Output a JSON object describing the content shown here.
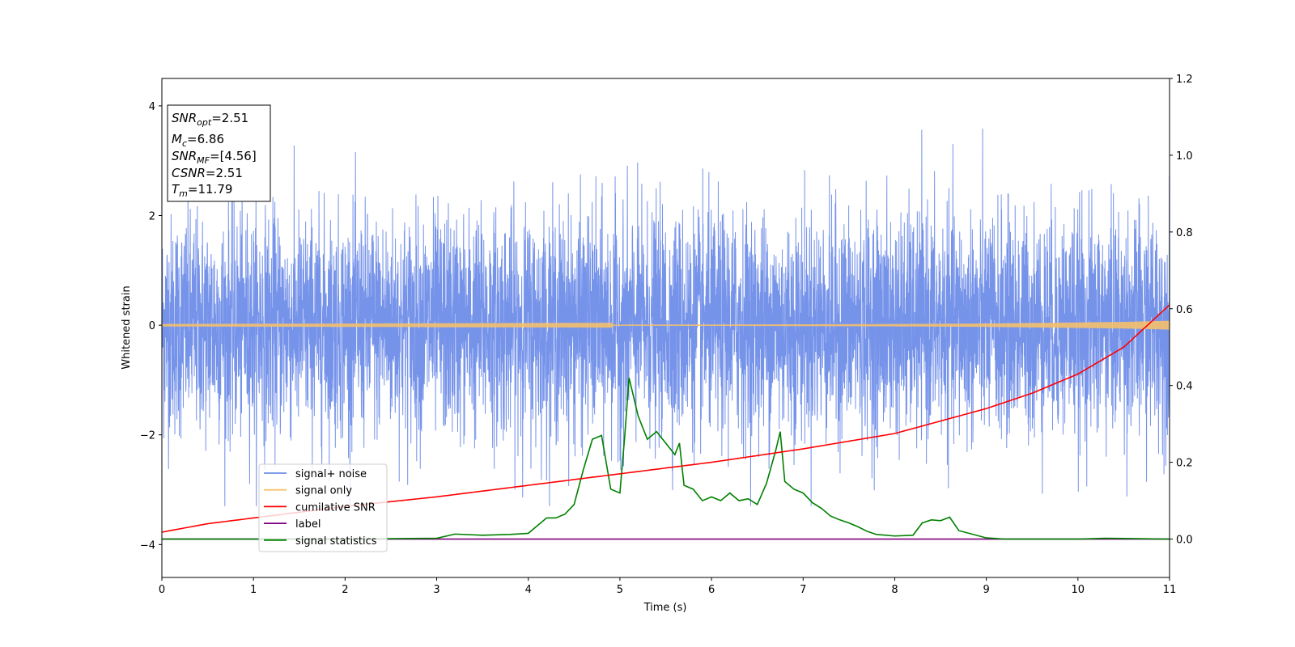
{
  "chart_data": {
    "type": "line",
    "xlabel": "Time (s)",
    "ylabel": "Whitened strain",
    "xlim": [
      0,
      11
    ],
    "ylim": [
      -4.6,
      4.5
    ],
    "y2lim": [
      -0.1,
      1.2
    ],
    "x_ticks": [
      "0",
      "1",
      "2",
      "3",
      "4",
      "5",
      "6",
      "7",
      "8",
      "9",
      "10",
      "11"
    ],
    "y_ticks": [
      "4",
      "2",
      "0",
      "−2",
      "−4"
    ],
    "y2_ticks": [
      "1.2",
      "1.0",
      "0.8",
      "0.6",
      "0.4",
      "0.2",
      "0.0"
    ],
    "annotation": {
      "snr_opt": {
        "sym": "SNR",
        "sub": "opt",
        "value": "=2.51"
      },
      "mc": {
        "sym": "M",
        "sub": "c",
        "value": "=6.86"
      },
      "snr_mf": {
        "sym": "SNR",
        "sub": "MF",
        "value": "=[4.56]"
      },
      "csnr": {
        "sym": "CSNR",
        "sub": "",
        "value": "=2.51"
      },
      "tm": {
        "sym": "T",
        "sub": "m",
        "value": "=11.79"
      }
    },
    "legend": {
      "position": "lower-left",
      "entries": [
        {
          "label": "signal+ noise",
          "color": "#6f8de9"
        },
        {
          "label": "signal only",
          "color": "#f5c16c"
        },
        {
          "label": "cumilative SNR",
          "color": "#ff0000"
        },
        {
          "label": "label",
          "color": "#800080"
        },
        {
          "label": "signal statistics",
          "color": "#008000"
        }
      ]
    },
    "series": [
      {
        "name": "signal+ noise",
        "axis": "left",
        "color": "#6f8de9",
        "description_level": "noise ~ N(0,1), duration 11 s",
        "approx_envelope": [
          -3.3,
          4.1
        ]
      },
      {
        "name": "signal only",
        "axis": "left",
        "color": "#f5c16c",
        "x": [
          0,
          6,
          8,
          9,
          10,
          10.5,
          11
        ],
        "amplitude": [
          0.004,
          0.01,
          0.02,
          0.03,
          0.05,
          0.06,
          0.08
        ]
      },
      {
        "name": "cumilative SNR",
        "axis": "right",
        "color": "#ff0000",
        "x": [
          0,
          0.5,
          1,
          2,
          3,
          4,
          5,
          6,
          7,
          8,
          9,
          9.5,
          10,
          10.5,
          11
        ],
        "y": [
          0.018,
          0.04,
          0.055,
          0.085,
          0.11,
          0.14,
          0.17,
          0.2,
          0.235,
          0.275,
          0.34,
          0.38,
          0.43,
          0.5,
          0.61
        ]
      },
      {
        "name": "label",
        "axis": "right",
        "color": "#800080",
        "x": [
          0,
          11
        ],
        "y": [
          0,
          0
        ]
      },
      {
        "name": "signal statistics",
        "axis": "right",
        "color": "#008000",
        "x": [
          0,
          1,
          2,
          3,
          3.2,
          3.5,
          3.8,
          4.0,
          4.2,
          4.3,
          4.4,
          4.5,
          4.6,
          4.7,
          4.8,
          4.9,
          5.0,
          5.05,
          5.1,
          5.2,
          5.3,
          5.4,
          5.5,
          5.6,
          5.65,
          5.7,
          5.8,
          5.9,
          6.0,
          6.1,
          6.2,
          6.3,
          6.4,
          6.5,
          6.6,
          6.7,
          6.75,
          6.8,
          6.9,
          7.0,
          7.1,
          7.2,
          7.3,
          7.4,
          7.5,
          7.6,
          7.7,
          7.8,
          8.0,
          8.2,
          8.3,
          8.4,
          8.5,
          8.6,
          8.7,
          9.0,
          9.2,
          10.0,
          10.3,
          11.0
        ],
        "y": [
          0.0,
          0.0,
          0.0,
          0.002,
          0.013,
          0.01,
          0.012,
          0.015,
          0.055,
          0.055,
          0.065,
          0.09,
          0.18,
          0.26,
          0.27,
          0.13,
          0.12,
          0.26,
          0.42,
          0.32,
          0.26,
          0.28,
          0.25,
          0.22,
          0.25,
          0.14,
          0.13,
          0.1,
          0.11,
          0.1,
          0.12,
          0.1,
          0.105,
          0.09,
          0.145,
          0.23,
          0.28,
          0.15,
          0.13,
          0.12,
          0.095,
          0.08,
          0.06,
          0.05,
          0.042,
          0.032,
          0.02,
          0.012,
          0.008,
          0.01,
          0.042,
          0.05,
          0.048,
          0.057,
          0.022,
          0.003,
          0.0,
          0.0,
          0.002,
          0.0
        ]
      }
    ]
  }
}
